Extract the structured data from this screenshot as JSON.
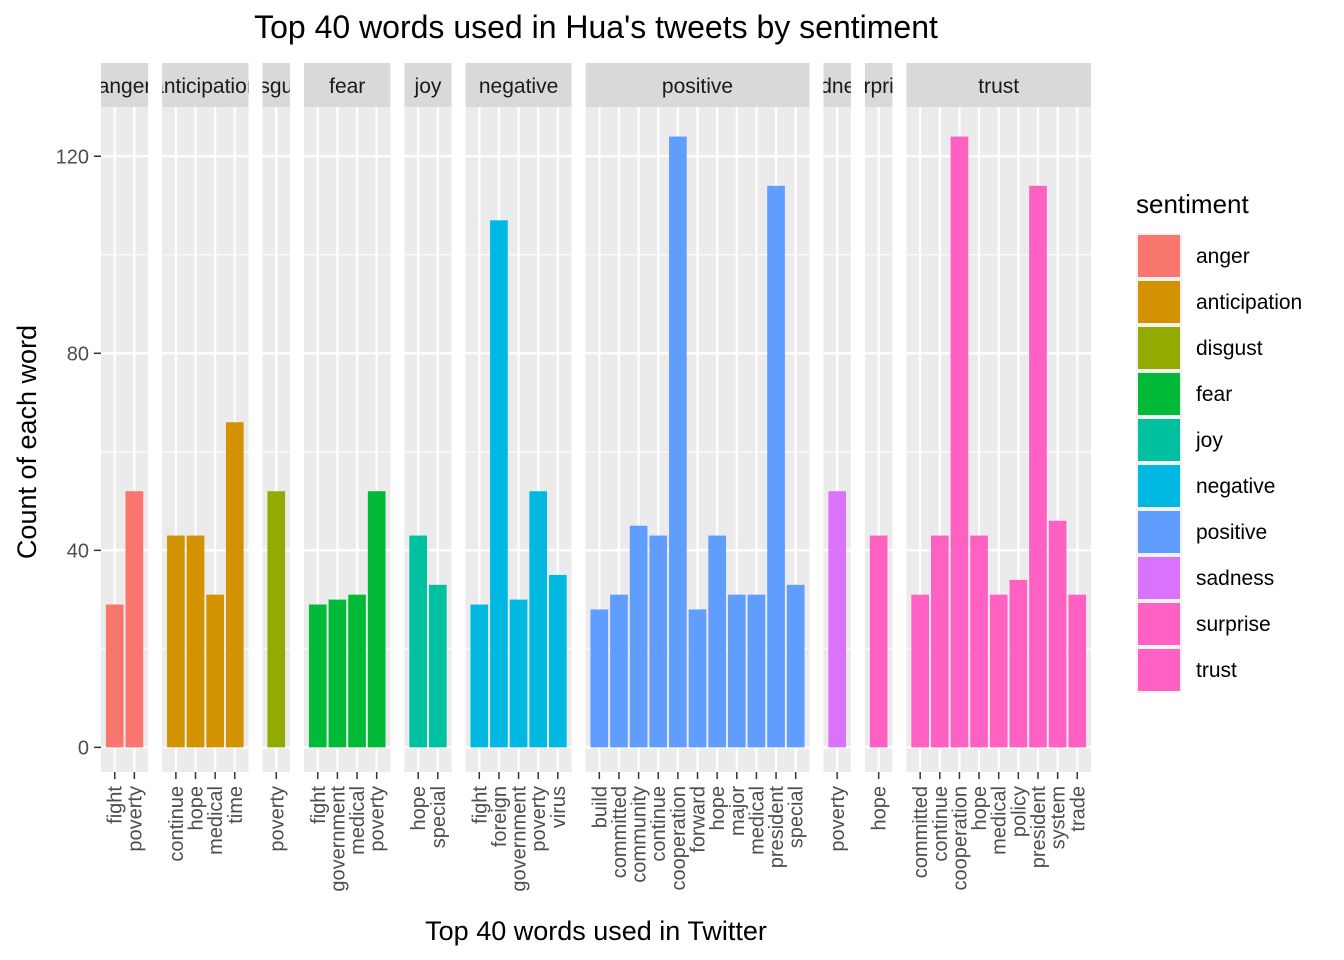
{
  "chart_data": {
    "type": "bar",
    "title": "Top 40 words used in Hua's tweets by sentiment",
    "xlabel": "Top 40 words used in Twitter",
    "ylabel": "Count of each word",
    "ylim": [
      -5,
      130
    ],
    "yticks": [
      0,
      40,
      80,
      120
    ],
    "grid": true,
    "legend_position": "right",
    "legend_title": "sentiment",
    "facets": [
      {
        "name": "anger",
        "strip_label": "anger",
        "color": "#F8766D",
        "categories": [
          "fight",
          "poverty"
        ],
        "values": [
          29,
          52
        ]
      },
      {
        "name": "anticipation",
        "strip_label": "anticipation",
        "color": "#D39200",
        "categories": [
          "continue",
          "hope",
          "medical",
          "time"
        ],
        "values": [
          43,
          43,
          31,
          66
        ]
      },
      {
        "name": "disgust",
        "strip_label": "disgust",
        "color": "#93AA00",
        "categories": [
          "poverty"
        ],
        "values": [
          52
        ]
      },
      {
        "name": "fear",
        "strip_label": "fear",
        "color": "#00BA38",
        "categories": [
          "fight",
          "government",
          "medical",
          "poverty"
        ],
        "values": [
          29,
          30,
          31,
          52
        ]
      },
      {
        "name": "joy",
        "strip_label": "joy",
        "color": "#00C19F",
        "categories": [
          "hope",
          "special"
        ],
        "values": [
          43,
          33
        ]
      },
      {
        "name": "negative",
        "strip_label": "negative",
        "color": "#00B9E3",
        "categories": [
          "fight",
          "foreign",
          "government",
          "poverty",
          "virus"
        ],
        "values": [
          29,
          107,
          30,
          52,
          35
        ]
      },
      {
        "name": "positive",
        "strip_label": "positive",
        "color": "#619CFF",
        "categories": [
          "build",
          "committed",
          "community",
          "continue",
          "cooperation",
          "forward",
          "hope",
          "major",
          "medical",
          "president",
          "special"
        ],
        "values": [
          28,
          31,
          45,
          43,
          124,
          28,
          43,
          31,
          31,
          114,
          33
        ]
      },
      {
        "name": "sadness",
        "strip_label": "sadness",
        "color": "#DB72FB",
        "categories": [
          "poverty"
        ],
        "values": [
          52
        ]
      },
      {
        "name": "surprise",
        "strip_label": "surprise",
        "color": "#FF61C3",
        "categories": [
          "hope"
        ],
        "values": [
          43
        ]
      },
      {
        "name": "trust",
        "strip_label": "trust",
        "color": "#FF61C3",
        "categories": [
          "committed",
          "continue",
          "cooperation",
          "hope",
          "medical",
          "policy",
          "president",
          "system",
          "trade"
        ],
        "values": [
          31,
          43,
          124,
          43,
          31,
          34,
          114,
          46,
          31
        ]
      }
    ],
    "legend": [
      {
        "label": "anger",
        "color": "#F8766D"
      },
      {
        "label": "anticipation",
        "color": "#D39200"
      },
      {
        "label": "disgust",
        "color": "#93AA00"
      },
      {
        "label": "fear",
        "color": "#00BA38"
      },
      {
        "label": "joy",
        "color": "#00C19F"
      },
      {
        "label": "negative",
        "color": "#00B9E3"
      },
      {
        "label": "positive",
        "color": "#619CFF"
      },
      {
        "label": "sadness",
        "color": "#DB72FB"
      },
      {
        "label": "surprise",
        "color": "#FF61C3"
      },
      {
        "label": "trust",
        "color": "#FF61C3"
      }
    ]
  }
}
